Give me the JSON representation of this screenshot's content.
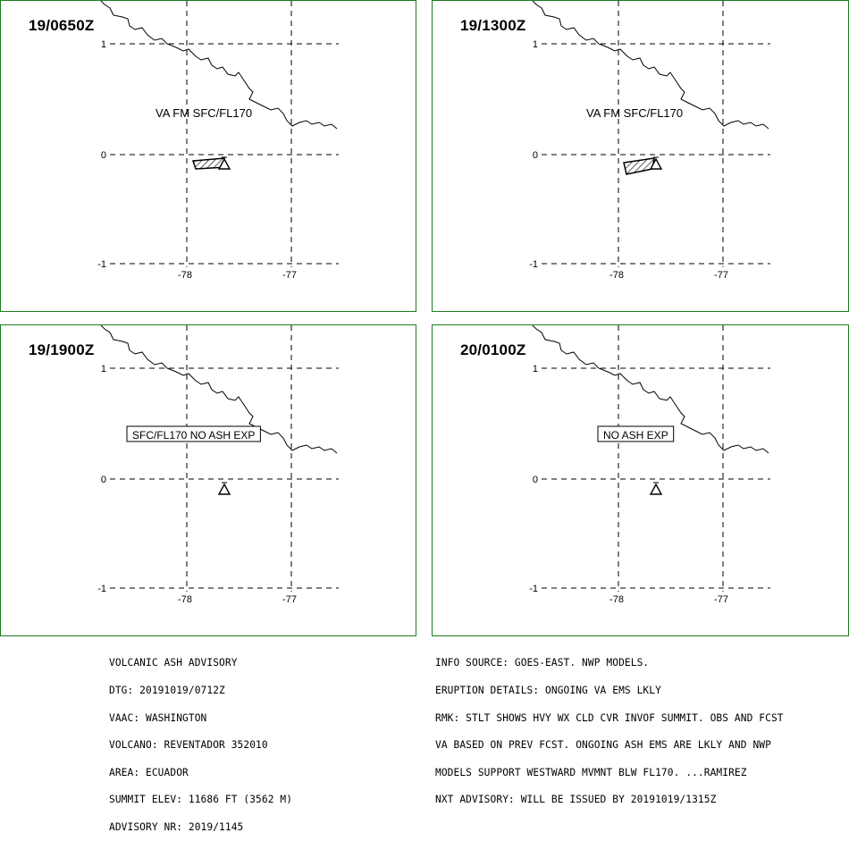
{
  "panels": [
    {
      "time": "19/0650Z",
      "label": "VA FM SFC/FL170",
      "label_boxed": false,
      "ash": true
    },
    {
      "time": "19/1300Z",
      "label": "VA FM SFC/FL170",
      "label_boxed": false,
      "ash": true
    },
    {
      "time": "19/1900Z",
      "label": "SFC/FL170 NO ASH EXP",
      "label_boxed": true,
      "ash": false
    },
    {
      "time": "20/0100Z",
      "label": "NO ASH EXP",
      "label_boxed": true,
      "ash": false
    }
  ],
  "lat_labels": [
    "1",
    "0",
    "-1"
  ],
  "lon_labels": [
    "-78",
    "-77"
  ],
  "map_symbols": {
    "volcano": "triangle-volcano-icon",
    "ash": "hatched-ash-polygon"
  },
  "colors": {
    "frame": "#1f7a1f",
    "lines": "#000000",
    "background": "#ffffff"
  },
  "advisory_left": [
    "VOLCANIC ASH ADVISORY",
    "DTG: 20191019/0712Z",
    "VAAC: WASHINGTON",
    "VOLCANO: REVENTADOR 352010",
    "AREA: ECUADOR",
    "SUMMIT ELEV: 11686 FT (3562 M)",
    "ADVISORY NR: 2019/1145"
  ],
  "advisory_right": [
    "INFO SOURCE: GOES-EAST. NWP MODELS.",
    "ERUPTION DETAILS: ONGOING VA EMS LKLY",
    "RMK: STLT SHOWS HVY WX CLD CVR INVOF SUMMIT. OBS AND FCST",
    "VA BASED ON PREV FCST. ONGOING ASH EMS ARE LKLY AND NWP",
    "MODELS SUPPORT WESTWARD MVMNT BLW FL170. ...RAMIREZ",
    "NXT ADVISORY: WILL BE ISSUED BY 20191019/1315Z"
  ]
}
